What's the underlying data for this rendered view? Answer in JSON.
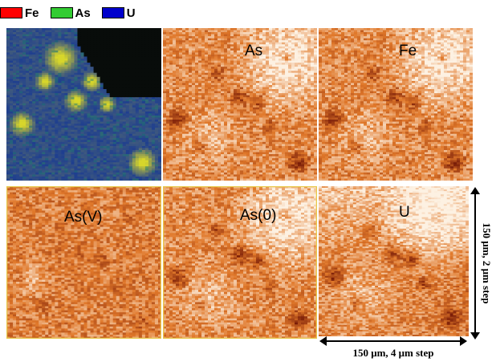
{
  "legend": [
    {
      "label": "Fe",
      "color": "#ff0000"
    },
    {
      "label": "As",
      "color": "#33cc33"
    },
    {
      "label": "U",
      "color": "#0000cc"
    }
  ],
  "maps": [
    {
      "id": "composite",
      "label": "",
      "kind": "composite"
    },
    {
      "id": "as",
      "label": "As",
      "kind": "orange"
    },
    {
      "id": "fe",
      "label": "Fe",
      "kind": "orange"
    },
    {
      "id": "asv",
      "label": "As(V)",
      "kind": "orange"
    },
    {
      "id": "as0",
      "label": "As(0)",
      "kind": "orange"
    },
    {
      "id": "u",
      "label": "U",
      "kind": "orange"
    }
  ],
  "scale": {
    "horizontal": "150 μm, 4 μm step",
    "vertical": "150 μm, 2 μm step"
  },
  "colors": {
    "orange_light": "#fdf1e2",
    "orange_mid": "#e0782a",
    "orange_dark": "#7a1d08",
    "composite_blue": "#1f3f8f",
    "composite_yellow": "#d7d62b",
    "panel_border": "#e8c84a"
  }
}
